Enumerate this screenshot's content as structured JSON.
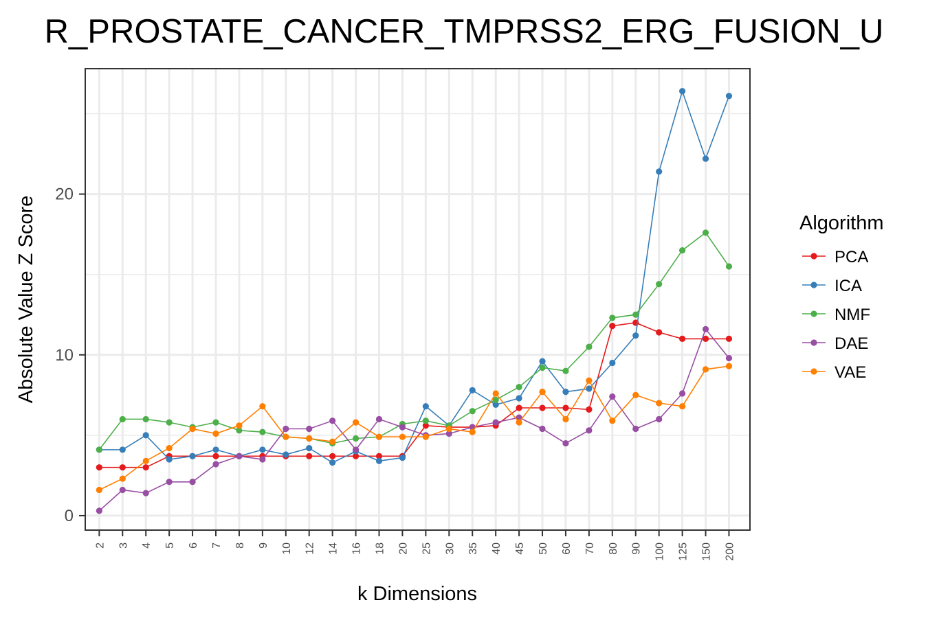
{
  "chart_data": {
    "type": "line",
    "title": "R_PROSTATE_CANCER_TMPRSS2_ERG_FUSION_U",
    "xlabel": "k Dimensions",
    "ylabel": "Absolute Value Z Score",
    "categories": [
      "2",
      "3",
      "4",
      "5",
      "6",
      "7",
      "8",
      "9",
      "10",
      "12",
      "14",
      "16",
      "18",
      "20",
      "25",
      "30",
      "35",
      "40",
      "45",
      "50",
      "60",
      "70",
      "80",
      "90",
      "100",
      "125",
      "150",
      "200"
    ],
    "ylim": [
      -0.9,
      27.8
    ],
    "yticks": [
      0,
      10,
      20
    ],
    "grid": true,
    "legend": {
      "title": "Algorithm",
      "position": "right"
    },
    "series": [
      {
        "name": "PCA",
        "color": "#e41a1c",
        "values": [
          3.0,
          3.0,
          3.0,
          3.7,
          3.7,
          3.7,
          3.7,
          3.7,
          3.7,
          3.7,
          3.7,
          3.7,
          3.7,
          3.7,
          5.6,
          5.5,
          5.5,
          5.6,
          6.7,
          6.7,
          6.7,
          6.6,
          11.8,
          12.0,
          11.4,
          11.0,
          11.0,
          11.0
        ]
      },
      {
        "name": "ICA",
        "color": "#377eb8",
        "values": [
          4.1,
          4.1,
          5.0,
          3.5,
          3.7,
          4.1,
          3.7,
          4.1,
          3.8,
          4.2,
          3.3,
          4.0,
          3.4,
          3.6,
          6.8,
          5.6,
          7.8,
          6.9,
          7.3,
          9.6,
          7.7,
          7.9,
          9.5,
          11.2,
          21.4,
          26.4,
          22.2,
          26.1
        ]
      },
      {
        "name": "NMF",
        "color": "#4daf4a",
        "values": [
          4.1,
          6.0,
          6.0,
          5.8,
          5.5,
          5.8,
          5.3,
          5.2,
          4.9,
          4.8,
          4.5,
          4.8,
          4.9,
          5.7,
          5.9,
          5.6,
          6.5,
          7.2,
          8.0,
          9.2,
          9.0,
          10.5,
          12.3,
          12.5,
          14.4,
          16.5,
          17.6,
          15.5
        ]
      },
      {
        "name": "DAE",
        "color": "#984ea3",
        "values": [
          0.3,
          1.6,
          1.4,
          2.1,
          2.1,
          3.2,
          3.7,
          3.5,
          5.4,
          5.4,
          5.9,
          4.1,
          6.0,
          5.5,
          5.0,
          5.1,
          5.5,
          5.8,
          6.1,
          5.4,
          4.5,
          5.3,
          7.4,
          5.4,
          6.0,
          7.6,
          11.6,
          9.8
        ]
      },
      {
        "name": "VAE",
        "color": "#ff7f00",
        "values": [
          1.6,
          2.3,
          3.4,
          4.2,
          5.4,
          5.1,
          5.6,
          6.8,
          4.9,
          4.8,
          4.6,
          5.8,
          4.9,
          4.9,
          4.9,
          5.4,
          5.2,
          7.6,
          5.8,
          7.7,
          6.0,
          8.4,
          5.9,
          7.5,
          7.0,
          6.8,
          9.1,
          9.3
        ]
      }
    ]
  }
}
